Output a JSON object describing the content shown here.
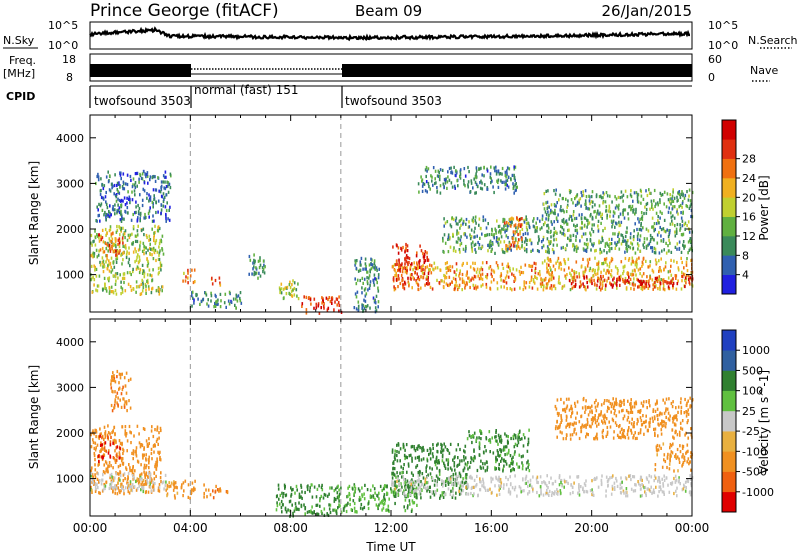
{
  "header": {
    "station": "Prince George (fitACF)",
    "beam": "Beam 09",
    "date": "26/Jan/2015"
  },
  "noise_panel": {
    "left_label": "N.Sky",
    "right_label": "N.Search",
    "ticks": [
      "10^5",
      "10^0"
    ]
  },
  "freq_panel": {
    "left_label_1": "Freq.",
    "left_label_2": "[MHz]",
    "left_ticks": [
      "18",
      "8"
    ],
    "right_label": "Nave",
    "right_ticks": [
      "60",
      "0"
    ]
  },
  "cpid_panel": {
    "label": "CPID",
    "segments": [
      {
        "name": "twofsound 3503",
        "start_hour": 0,
        "end_hour": 4
      },
      {
        "name": "normal (fast) 151",
        "start_hour": 4,
        "end_hour": 10
      },
      {
        "name": "twofsound 3503",
        "start_hour": 10,
        "end_hour": 24
      }
    ]
  },
  "colors": {
    "power": [
      "#2020e0",
      "#3060b0",
      "#3a8a5a",
      "#60b040",
      "#c0d030",
      "#f0b020",
      "#f07010",
      "#e03010",
      "#d00000"
    ],
    "velocity": [
      "#2040c0",
      "#3060a0",
      "#308030",
      "#60c040",
      "#c8c8c8",
      "#e8b040",
      "#f09020",
      "#f06010",
      "#e00000"
    ]
  },
  "chart_data": [
    {
      "type": "heatmap",
      "panel": "power",
      "ylabel": "Slant Range [km]",
      "xlabel": "",
      "yticks": [
        "1000",
        "2000",
        "3000",
        "4000"
      ],
      "xlim": [
        0,
        24
      ],
      "ylim": [
        180,
        4500
      ],
      "colorbar": {
        "label": "Power [dB]",
        "ticks": [
          "4",
          "8",
          "12",
          "16",
          "20",
          "24",
          "28"
        ],
        "range": [
          0,
          30
        ]
      },
      "regions": [
        {
          "t0": 0.0,
          "t1": 2.9,
          "r0": 600,
          "r1": 2100,
          "level": 14
        },
        {
          "t0": 0.3,
          "t1": 1.3,
          "r0": 1450,
          "r1": 1950,
          "level": 22
        },
        {
          "t0": 0.2,
          "t1": 3.2,
          "r0": 2200,
          "r1": 3300,
          "level": 6
        },
        {
          "t0": 3.6,
          "t1": 4.2,
          "r0": 850,
          "r1": 1150,
          "level": 20
        },
        {
          "t0": 4.8,
          "t1": 5.3,
          "r0": 800,
          "r1": 1000,
          "level": 22
        },
        {
          "t0": 4.0,
          "t1": 6.0,
          "r0": 300,
          "r1": 650,
          "level": 8
        },
        {
          "t0": 6.3,
          "t1": 7.0,
          "r0": 950,
          "r1": 1500,
          "level": 8
        },
        {
          "t0": 7.5,
          "t1": 8.3,
          "r0": 500,
          "r1": 900,
          "level": 14
        },
        {
          "t0": 8.4,
          "t1": 10.0,
          "r0": 180,
          "r1": 550,
          "level": 25
        },
        {
          "t0": 10.5,
          "t1": 11.5,
          "r0": 200,
          "r1": 1400,
          "level": 8
        },
        {
          "t0": 12.0,
          "t1": 13.5,
          "r0": 800,
          "r1": 1700,
          "level": 26
        },
        {
          "t0": 12.0,
          "t1": 18.5,
          "r0": 700,
          "r1": 1300,
          "level": 20
        },
        {
          "t0": 14.0,
          "t1": 18.0,
          "r0": 1500,
          "r1": 2300,
          "level": 10
        },
        {
          "t0": 16.5,
          "t1": 17.2,
          "r0": 1600,
          "r1": 2300,
          "level": 22
        },
        {
          "t0": 18.0,
          "t1": 24.0,
          "r0": 700,
          "r1": 1400,
          "level": 18
        },
        {
          "t0": 19.0,
          "t1": 24.0,
          "r0": 750,
          "r1": 1000,
          "level": 27
        },
        {
          "t0": 18.0,
          "t1": 24.0,
          "r0": 1500,
          "r1": 2900,
          "level": 10
        },
        {
          "t0": 13.0,
          "t1": 17.0,
          "r0": 2800,
          "r1": 3400,
          "level": 8
        }
      ]
    },
    {
      "type": "heatmap",
      "panel": "velocity",
      "ylabel": "Slant Range [km]",
      "xlabel": "Time UT",
      "yticks": [
        "1000",
        "2000",
        "3000",
        "4000"
      ],
      "xticks": [
        "00:00",
        "04:00",
        "08:00",
        "12:00",
        "16:00",
        "20:00",
        "00:00"
      ],
      "xlim": [
        0,
        24
      ],
      "ylim": [
        180,
        4500
      ],
      "colorbar": {
        "label": "Velocity [m s^-1]",
        "ticks": [
          "1000",
          "500",
          "100",
          "25",
          "-25",
          "-100",
          "-500",
          "-1000"
        ],
        "range": [
          -1100,
          1100
        ]
      },
      "regions": [
        {
          "t0": 0.0,
          "t1": 2.8,
          "r0": 700,
          "r1": 2200,
          "level": -300
        },
        {
          "t0": 0.0,
          "t1": 3.0,
          "r0": 750,
          "r1": 1150,
          "level": 0
        },
        {
          "t0": 0.3,
          "t1": 1.2,
          "r0": 1400,
          "r1": 2000,
          "level": -900
        },
        {
          "t0": 3.0,
          "t1": 4.2,
          "r0": 600,
          "r1": 1000,
          "level": -200
        },
        {
          "t0": 4.5,
          "t1": 5.5,
          "r0": 600,
          "r1": 900,
          "level": -400
        },
        {
          "t0": 7.4,
          "t1": 10.0,
          "r0": 200,
          "r1": 900,
          "level": 150
        },
        {
          "t0": 10.0,
          "t1": 13.0,
          "r0": 300,
          "r1": 900,
          "level": 80
        },
        {
          "t0": 12.0,
          "t1": 15.0,
          "r0": 600,
          "r1": 1800,
          "level": 200
        },
        {
          "t0": 12.0,
          "t1": 24.0,
          "r0": 650,
          "r1": 1100,
          "level": 0
        },
        {
          "t0": 15.0,
          "t1": 17.5,
          "r0": 1200,
          "r1": 2100,
          "level": 150
        },
        {
          "t0": 18.5,
          "t1": 24.0,
          "r0": 1900,
          "r1": 2800,
          "level": -300
        },
        {
          "t0": 22.5,
          "t1": 24.0,
          "r0": 1200,
          "r1": 1800,
          "level": -200
        },
        {
          "t0": 0.8,
          "t1": 1.6,
          "r0": 2500,
          "r1": 3400,
          "level": -400
        }
      ]
    }
  ]
}
